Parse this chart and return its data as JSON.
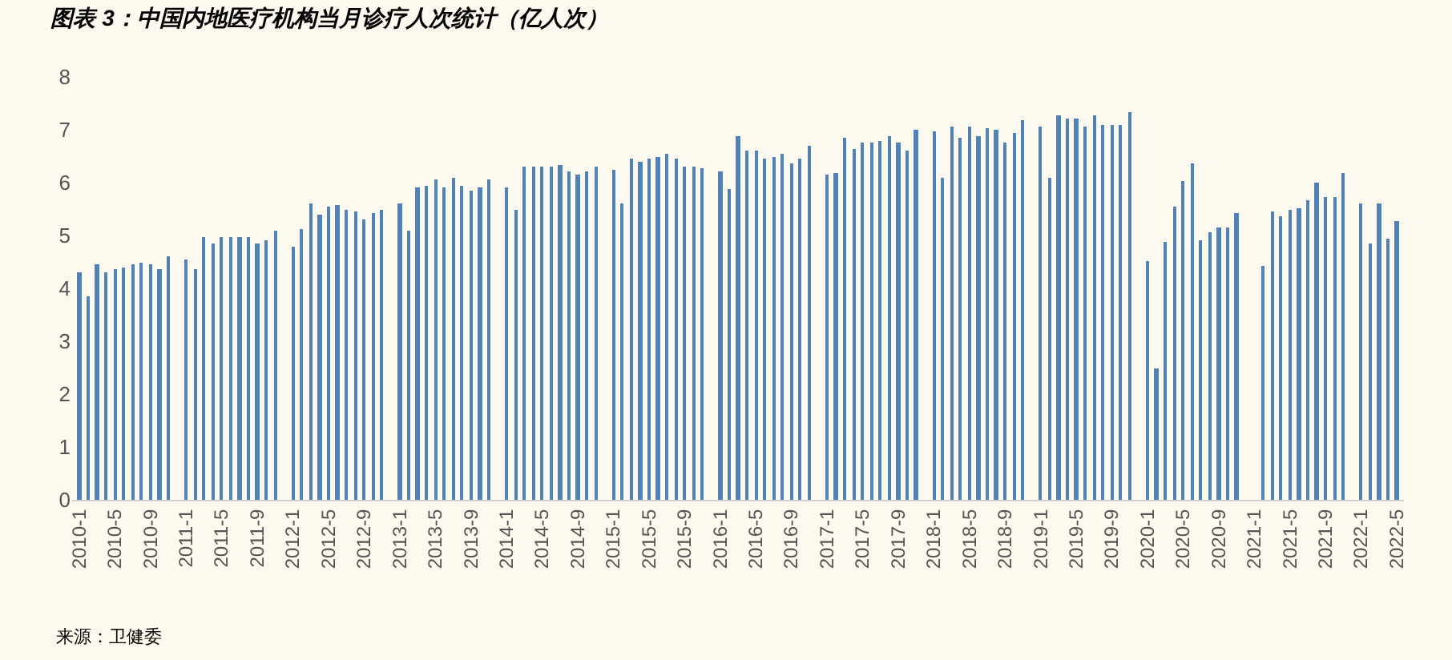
{
  "chart_data": {
    "type": "bar",
    "title": "图表 3：中国内地医疗机构当月诊疗人次统计（亿人次）",
    "annotations": [
      "来源：卫健委"
    ],
    "categories": [
      "2010-1",
      null,
      null,
      null,
      "2010-5",
      null,
      null,
      null,
      "2010-9",
      null,
      null,
      null,
      "2011-1",
      null,
      null,
      null,
      "2011-5",
      null,
      null,
      null,
      "2011-9",
      null,
      null,
      null,
      "2012-1",
      null,
      null,
      null,
      "2012-5",
      null,
      null,
      null,
      "2012-9",
      null,
      null,
      null,
      "2013-1",
      null,
      null,
      null,
      "2013-5",
      null,
      null,
      null,
      "2013-9",
      null,
      null,
      null,
      "2014-1",
      null,
      null,
      null,
      "2014-5",
      null,
      null,
      null,
      "2014-9",
      null,
      null,
      null,
      "2015-1",
      null,
      null,
      null,
      "2015-5",
      null,
      null,
      null,
      "2015-9",
      null,
      null,
      null,
      "2016-1",
      null,
      null,
      null,
      "2016-5",
      null,
      null,
      null,
      "2016-9",
      null,
      null,
      null,
      "2017-1",
      null,
      null,
      null,
      "2017-5",
      null,
      null,
      null,
      "2017-9",
      null,
      null,
      null,
      "2018-1",
      null,
      null,
      null,
      "2018-5",
      null,
      null,
      null,
      "2018-9",
      null,
      null,
      null,
      "2019-1",
      null,
      null,
      null,
      "2019-5",
      null,
      null,
      null,
      "2019-9",
      null,
      null,
      null,
      "2020-1",
      null,
      null,
      null,
      "2020-5",
      null,
      null,
      null,
      "2020-9",
      null,
      null,
      null,
      "2021-1",
      null,
      null,
      null,
      "2021-5",
      null,
      null,
      null,
      "2021-9",
      null,
      null,
      null,
      "2022-1",
      null,
      null,
      null,
      "2022-5"
    ],
    "values": [
      4.3,
      3.85,
      4.45,
      4.3,
      4.35,
      4.4,
      4.45,
      4.5,
      4.45,
      4.35,
      4.6,
      null,
      4.55,
      4.35,
      4.98,
      4.85,
      4.97,
      4.97,
      4.97,
      4.97,
      4.85,
      4.9,
      5.1,
      null,
      4.8,
      5.12,
      5.62,
      5.4,
      5.55,
      5.58,
      5.5,
      5.45,
      5.3,
      5.42,
      5.5,
      null,
      5.6,
      5.1,
      5.9,
      5.95,
      6.05,
      5.9,
      6.1,
      5.95,
      5.85,
      5.9,
      6.05,
      null,
      5.9,
      5.5,
      6.3,
      6.3,
      6.3,
      6.3,
      6.33,
      6.2,
      6.15,
      6.2,
      6.3,
      null,
      6.25,
      5.6,
      6.45,
      6.4,
      6.45,
      6.5,
      6.55,
      6.45,
      6.3,
      6.3,
      6.26,
      null,
      6.21,
      5.87,
      6.88,
      6.62,
      6.62,
      6.46,
      6.49,
      6.56,
      6.37,
      6.46,
      6.69,
      null,
      6.15,
      6.18,
      6.84,
      6.65,
      6.76,
      6.76,
      6.8,
      6.88,
      6.76,
      6.62,
      7.0,
      null,
      6.96,
      6.1,
      7.07,
      6.84,
      7.07,
      6.88,
      7.03,
      6.99,
      6.76,
      6.93,
      7.19,
      null,
      7.07,
      6.1,
      7.27,
      7.22,
      7.22,
      7.07,
      7.27,
      7.1,
      7.1,
      7.1,
      7.34,
      null,
      4.52,
      2.48,
      4.87,
      5.56,
      6.03,
      6.37,
      4.91,
      5.06,
      5.14,
      5.14,
      5.41,
      null,
      null,
      4.41,
      5.45,
      5.37,
      5.49,
      5.53,
      5.68,
      5.99,
      5.72,
      5.72,
      6.18,
      null,
      5.61,
      4.84,
      5.61,
      4.95,
      5.26
    ],
    "color": "#4f81bd",
    "ylim": [
      0,
      8
    ],
    "yticks": [
      0,
      1,
      2,
      3,
      4,
      5,
      6,
      7,
      8
    ],
    "grid": false,
    "legend": false
  }
}
